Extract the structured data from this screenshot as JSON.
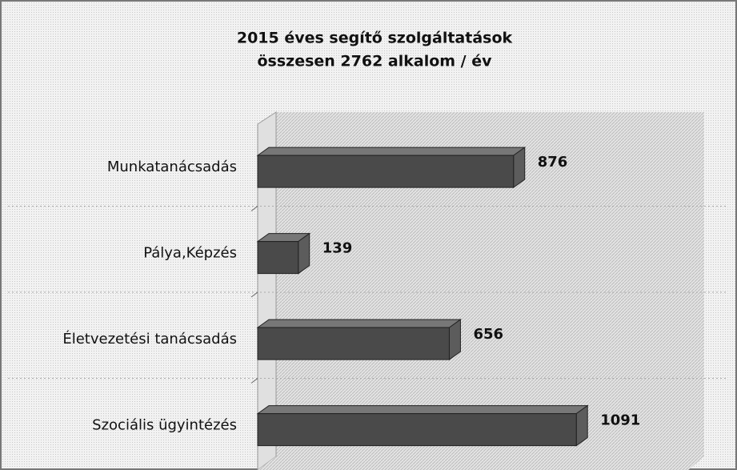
{
  "chart_data": {
    "type": "bar",
    "orientation": "horizontal",
    "title": "2015 éves segítő szolgáltatások",
    "subtitle": "összesen 2762 alkalom / év",
    "categories": [
      "Munkatanácsadás",
      "Pálya,Képzés",
      "Életvezetési tanácsadás",
      "Szociális ügyintézés"
    ],
    "values": [
      876,
      139,
      656,
      1091
    ],
    "color": "#4a4a4a"
  }
}
